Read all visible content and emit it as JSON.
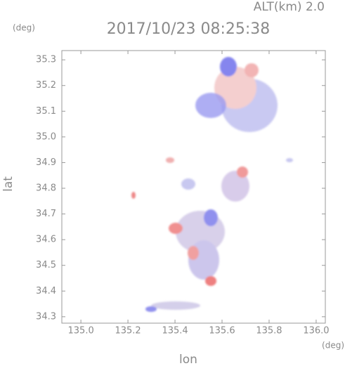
{
  "chart_data": {
    "type": "map",
    "title": "2017/10/23 08:25:38",
    "subtitle": "ALT(km) 2.0",
    "y_unit": "(deg)",
    "x_unit": "(deg)",
    "xlabel": "lon",
    "ylabel": "lat",
    "xlim": [
      134.919,
      136.039
    ],
    "ylim": [
      34.275,
      35.336
    ],
    "xticks": [
      {
        "value": 135.0,
        "label": "135.0"
      },
      135.2,
      135.4,
      135.6,
      135.8,
      {
        "value": 136.0,
        "label": "136.0"
      }
    ],
    "yticks": [
      34.3,
      34.4,
      34.5,
      34.6,
      34.7,
      34.8,
      34.9,
      {
        "value": 35.0,
        "label": "35.0"
      },
      35.1,
      35.2,
      35.3
    ]
  }
}
